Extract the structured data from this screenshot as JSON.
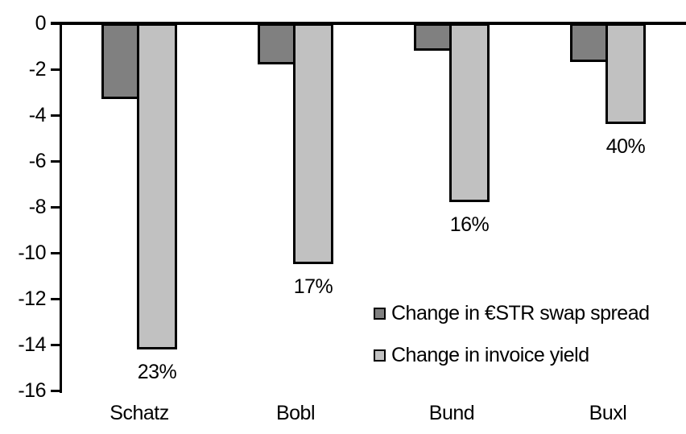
{
  "chart_data": {
    "type": "bar",
    "title": "",
    "xlabel": "",
    "ylabel": "",
    "categories": [
      "Schatz",
      "Bobl",
      "Bund",
      "Buxl"
    ],
    "series": [
      {
        "name": "Change in €STR swap spread",
        "color": "#808080",
        "values": [
          -3.3,
          -1.8,
          -1.2,
          -1.7
        ]
      },
      {
        "name": "Change in invoice yield",
        "color": "#c1c1c1",
        "values": [
          -14.2,
          -10.5,
          -7.8,
          -4.4
        ]
      }
    ],
    "bar_labels": {
      "series": "Change in invoice yield",
      "values": [
        "23%",
        "17%",
        "16%",
        "40%"
      ]
    },
    "ylim": [
      -16,
      0
    ],
    "yticks": [
      0,
      -2,
      -4,
      -6,
      -8,
      -10,
      -12,
      -14,
      -16
    ],
    "grid": false,
    "legend_position": "inside-right",
    "axis_color": "#000000",
    "background_color": "#ffffff"
  }
}
